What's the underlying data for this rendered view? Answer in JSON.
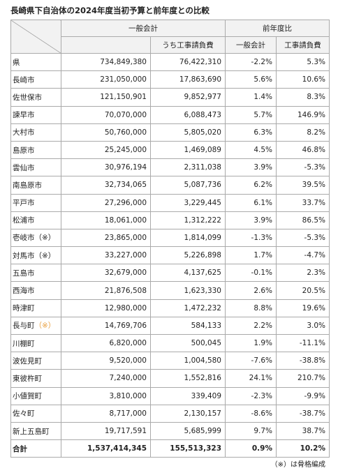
{
  "title": "長崎県下自治体の2024年度当初予算と前年度との比較",
  "header": {
    "group1": "一般会計",
    "group1_sub": "うち工事請負費",
    "group2": "前年度比",
    "group2_sub1": "一般会計",
    "group2_sub2": "工事請負費"
  },
  "table": {
    "rows": [
      [
        "県",
        "734,849,380",
        "76,422,310",
        "-2.2%",
        "5.3%"
      ],
      [
        "長崎市",
        "231,050,000",
        "17,863,690",
        "5.6%",
        "10.6%"
      ],
      [
        "佐世保市",
        "121,150,901",
        "9,852,977",
        "1.4%",
        "8.3%"
      ],
      [
        "諫早市",
        "70,070,000",
        "6,088,473",
        "5.7%",
        "146.9%"
      ],
      [
        "大村市",
        "50,760,000",
        "5,805,020",
        "6.3%",
        "8.2%"
      ],
      [
        "島原市",
        "25,245,000",
        "1,469,089",
        "4.5%",
        "46.8%"
      ],
      [
        "雲仙市",
        "30,976,194",
        "2,311,038",
        "3.9%",
        "-5.3%"
      ],
      [
        "南島原市",
        "32,734,065",
        "5,087,736",
        "6.2%",
        "39.5%"
      ],
      [
        "平戸市",
        "27,296,000",
        "3,229,445",
        "6.1%",
        "33.7%"
      ],
      [
        "松浦市",
        "18,061,000",
        "1,312,222",
        "3.9%",
        "86.5%"
      ],
      [
        "壱岐市（※）",
        "23,865,000",
        "1,814,099",
        "-1.3%",
        "-5.3%"
      ],
      [
        "対馬市（※）",
        "33,227,000",
        "5,226,898",
        "1.7%",
        "-4.7%"
      ],
      [
        "五島市",
        "32,679,000",
        "4,137,625",
        "-0.1%",
        "2.3%"
      ],
      [
        "西海市",
        "21,876,508",
        "1,623,330",
        "2.6%",
        "20.5%"
      ],
      [
        "時津町",
        "12,980,000",
        "1,472,232",
        "8.8%",
        "19.6%"
      ],
      [
        [
          "長与町",
          "（※）"
        ],
        "14,769,706",
        "584,133",
        "2.2%",
        "3.0%"
      ],
      [
        "川棚町",
        "6,820,000",
        "500,045",
        "1.9%",
        "-11.1%"
      ],
      [
        "波佐見町",
        "9,520,000",
        "1,004,580",
        "-7.6%",
        "-38.8%"
      ],
      [
        "東彼杵町",
        "7,240,000",
        "1,552,816",
        "24.1%",
        "210.7%"
      ],
      [
        "小値賀町",
        "3,810,000",
        "339,409",
        "-2.3%",
        "-9.9%"
      ],
      [
        "佐々町",
        "8,717,000",
        "2,130,157",
        "-8.6%",
        "-38.7%"
      ],
      [
        "新上五島町",
        "19,717,591",
        "5,685,999",
        "9.7%",
        "38.7%"
      ]
    ],
    "total": [
      "合計",
      "1,537,414,345",
      "155,513,323",
      "0.9%",
      "10.2%"
    ]
  },
  "footer": "（※）は骨格編成"
}
